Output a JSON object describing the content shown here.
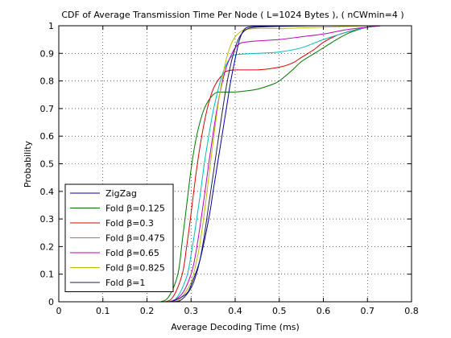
{
  "chart_data": {
    "type": "line",
    "title": "CDF of Average Transmission Time Per Node ( L=1024 Bytes ), ( nCWmin=4 )",
    "xlabel": "Average Decoding Time (ms)",
    "ylabel": "Probability",
    "xlim": [
      0,
      0.8
    ],
    "ylim": [
      0,
      1
    ],
    "xticks": [
      0,
      0.1,
      0.2,
      0.3,
      0.4,
      0.5,
      0.6,
      0.7,
      0.8
    ],
    "xtick_labels": [
      "0",
      "0.1",
      "0.2",
      "0.3",
      "0.4",
      "0.5",
      "0.6",
      "0.7",
      "0.8"
    ],
    "yticks": [
      0,
      0.1,
      0.2,
      0.3,
      0.4,
      0.5,
      0.6,
      0.7,
      0.8,
      0.9,
      1
    ],
    "ytick_labels": [
      "0",
      "0.1",
      "0.2",
      "0.3",
      "0.4",
      "0.5",
      "0.6",
      "0.7",
      "0.8",
      "0.9",
      "1"
    ],
    "grid": true,
    "legend_position": "bottom-left",
    "series": [
      {
        "name": "ZigZag",
        "color": "#0000aa",
        "x": [
          0.2,
          0.25,
          0.27,
          0.29,
          0.3,
          0.32,
          0.34,
          0.35,
          0.36,
          0.37,
          0.38,
          0.39,
          0.4,
          0.41,
          0.42,
          0.43,
          0.45,
          0.5,
          0.6,
          0.7,
          0.74
        ],
        "y": [
          0.0,
          0.0,
          0.01,
          0.03,
          0.06,
          0.15,
          0.3,
          0.4,
          0.5,
          0.6,
          0.7,
          0.8,
          0.88,
          0.95,
          0.985,
          0.995,
          0.998,
          0.999,
          1.0,
          1.0,
          1.0
        ]
      },
      {
        "name": "Fold β=0.125",
        "color": "#007700",
        "x": [
          0.2,
          0.23,
          0.25,
          0.27,
          0.28,
          0.29,
          0.3,
          0.31,
          0.32,
          0.33,
          0.34,
          0.35,
          0.36,
          0.37,
          0.38,
          0.4,
          0.43,
          0.45,
          0.48,
          0.5,
          0.53,
          0.55,
          0.58,
          0.6,
          0.63,
          0.66,
          0.7,
          0.73
        ],
        "y": [
          0.0,
          0.0,
          0.02,
          0.1,
          0.22,
          0.35,
          0.48,
          0.58,
          0.65,
          0.7,
          0.73,
          0.75,
          0.76,
          0.76,
          0.76,
          0.76,
          0.765,
          0.77,
          0.785,
          0.8,
          0.84,
          0.87,
          0.9,
          0.92,
          0.95,
          0.975,
          0.995,
          1.0
        ]
      },
      {
        "name": "Fold β=0.3",
        "color": "#dd0000",
        "x": [
          0.2,
          0.24,
          0.26,
          0.28,
          0.29,
          0.3,
          0.31,
          0.32,
          0.33,
          0.34,
          0.35,
          0.36,
          0.37,
          0.38,
          0.4,
          0.45,
          0.5,
          0.53,
          0.55,
          0.58,
          0.6,
          0.63,
          0.66,
          0.7,
          0.73
        ],
        "y": [
          0.0,
          0.0,
          0.02,
          0.1,
          0.2,
          0.32,
          0.45,
          0.56,
          0.65,
          0.72,
          0.77,
          0.8,
          0.82,
          0.835,
          0.84,
          0.84,
          0.85,
          0.865,
          0.885,
          0.915,
          0.94,
          0.965,
          0.98,
          0.995,
          1.0
        ]
      },
      {
        "name": "Fold β=0.475",
        "color": "#00bbbb",
        "x": [
          0.2,
          0.25,
          0.27,
          0.29,
          0.3,
          0.31,
          0.32,
          0.33,
          0.34,
          0.35,
          0.36,
          0.37,
          0.38,
          0.39,
          0.4,
          0.45,
          0.5,
          0.55,
          0.6,
          0.65,
          0.7,
          0.73
        ],
        "y": [
          0.0,
          0.0,
          0.02,
          0.09,
          0.17,
          0.27,
          0.38,
          0.5,
          0.6,
          0.69,
          0.76,
          0.82,
          0.86,
          0.885,
          0.895,
          0.9,
          0.905,
          0.92,
          0.95,
          0.975,
          0.995,
          1.0
        ]
      },
      {
        "name": "Fold β=0.65",
        "color": "#bb00bb",
        "x": [
          0.2,
          0.25,
          0.28,
          0.3,
          0.31,
          0.32,
          0.33,
          0.34,
          0.35,
          0.36,
          0.37,
          0.38,
          0.39,
          0.4,
          0.41,
          0.42,
          0.45,
          0.5,
          0.55,
          0.6,
          0.65,
          0.7,
          0.73
        ],
        "y": [
          0.0,
          0.0,
          0.03,
          0.1,
          0.17,
          0.27,
          0.38,
          0.5,
          0.61,
          0.71,
          0.79,
          0.85,
          0.89,
          0.92,
          0.935,
          0.94,
          0.945,
          0.95,
          0.96,
          0.97,
          0.985,
          0.995,
          1.0
        ]
      },
      {
        "name": "Fold β=0.825",
        "color": "#bbbb00",
        "x": [
          0.2,
          0.26,
          0.28,
          0.3,
          0.31,
          0.32,
          0.33,
          0.34,
          0.35,
          0.36,
          0.37,
          0.38,
          0.39,
          0.4,
          0.41,
          0.42,
          0.45,
          0.5,
          0.6,
          0.7,
          0.73
        ],
        "y": [
          0.0,
          0.0,
          0.02,
          0.07,
          0.13,
          0.21,
          0.32,
          0.45,
          0.58,
          0.7,
          0.8,
          0.88,
          0.93,
          0.96,
          0.975,
          0.985,
          0.99,
          0.99,
          0.995,
          1.0,
          1.0
        ]
      },
      {
        "name": "Fold β=1",
        "color": "#202040",
        "x": [
          0.2,
          0.26,
          0.28,
          0.3,
          0.31,
          0.32,
          0.33,
          0.34,
          0.35,
          0.36,
          0.37,
          0.38,
          0.39,
          0.4,
          0.41,
          0.42,
          0.43,
          0.45,
          0.5,
          0.6,
          0.7,
          0.74
        ],
        "y": [
          0.0,
          0.0,
          0.01,
          0.05,
          0.09,
          0.15,
          0.24,
          0.35,
          0.46,
          0.57,
          0.68,
          0.78,
          0.86,
          0.92,
          0.96,
          0.98,
          0.99,
          0.995,
          0.998,
          1.0,
          1.0,
          1.0
        ]
      }
    ]
  }
}
